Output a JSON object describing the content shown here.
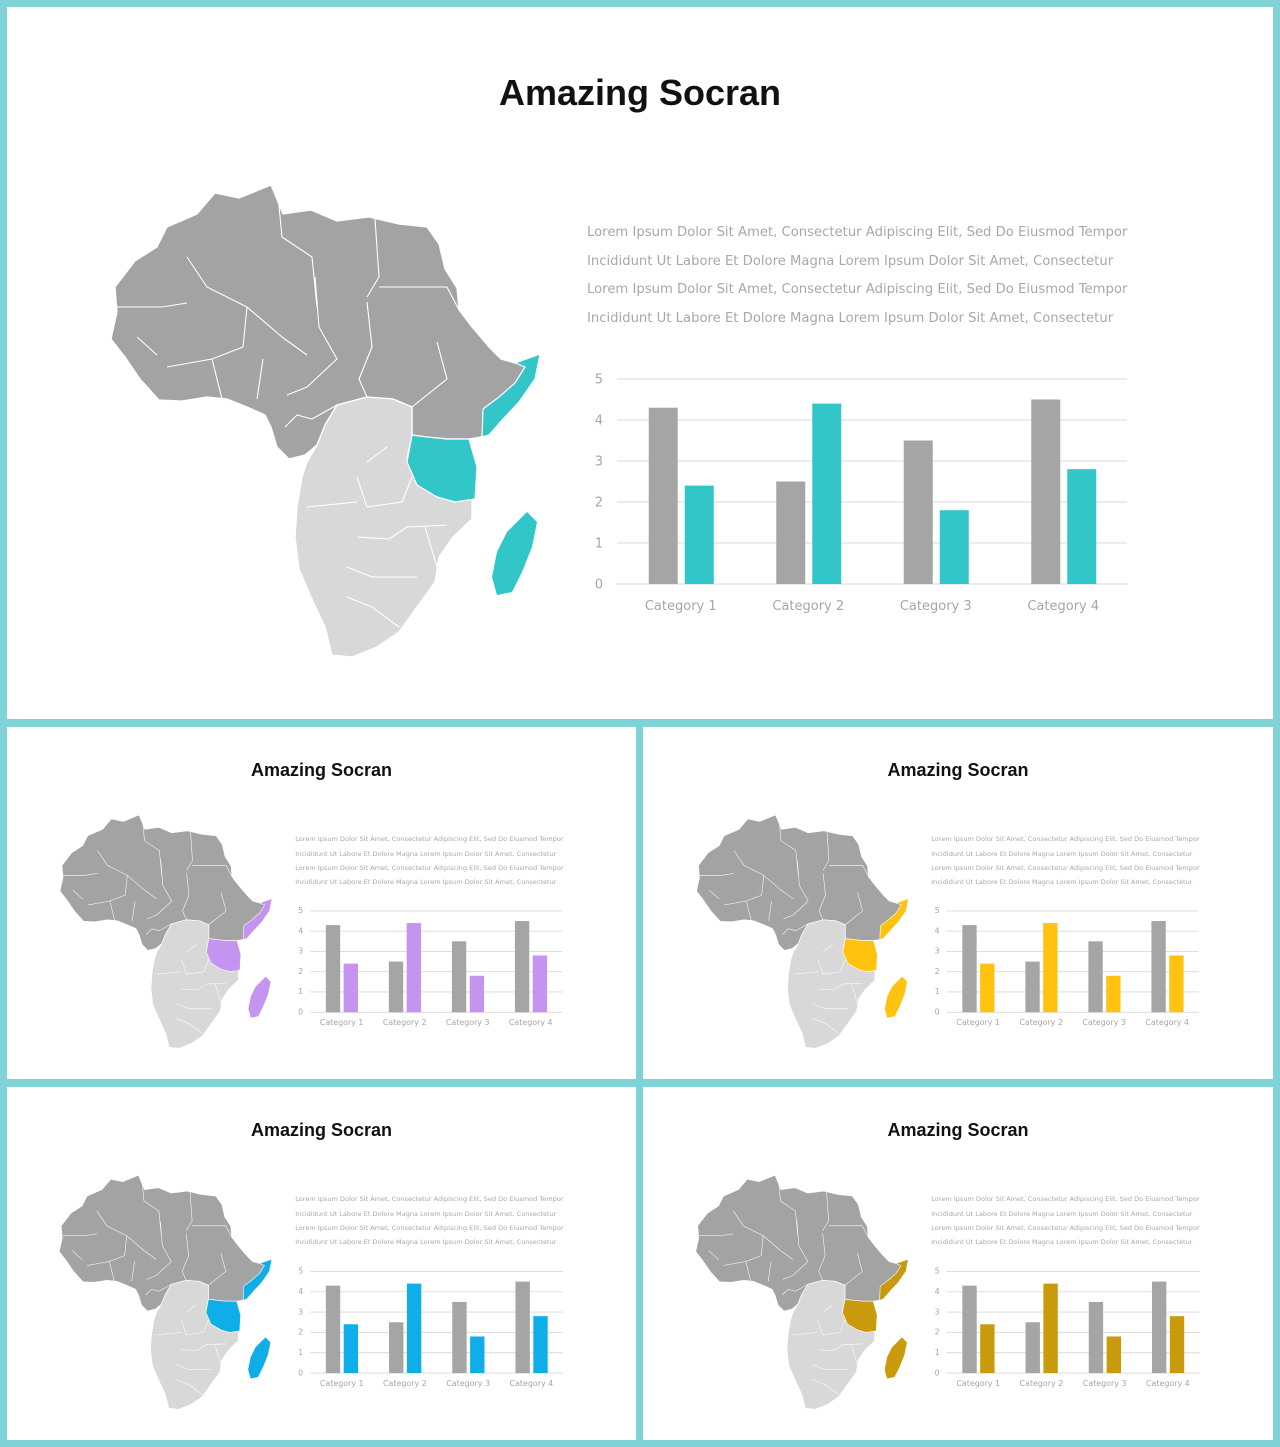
{
  "slides": [
    {
      "title": "Amazing Socran",
      "accent": "#33c6c9"
    },
    {
      "title": "Amazing Socran",
      "accent": "#c593f0"
    },
    {
      "title": "Amazing Socran",
      "accent": "#ffc20e"
    },
    {
      "title": "Amazing Socran",
      "accent": "#10aee8"
    },
    {
      "title": "Amazing Socran",
      "accent": "#c99a0c"
    }
  ],
  "body_lines": [
    "Lorem Ipsum Dolor Sit Amet, Consectetur Adipiscing Elit, Sed Do Eiusmod Tempor",
    "Incididunt Ut Labore Et Dolore Magna Lorem Ipsum Dolor Sit Amet, Consectetur",
    "Lorem Ipsum Dolor Sit Amet, Consectetur Adipiscing Elit, Sed Do Eiusmod Tempor",
    "Incididunt Ut Labore Et Dolore Magna Lorem Ipsum Dolor Sit Amet, Consectetur"
  ],
  "colors": {
    "frame": "#7fd3d6",
    "map_north": "#a3a3a3",
    "map_south": "#d8d8d8",
    "bar_gray": "#a5a5a5",
    "grid": "#d9d9d9",
    "axis_text": "#a6a6a6"
  },
  "chart_data": {
    "type": "bar",
    "categories": [
      "Category 1",
      "Category 2",
      "Category 3",
      "Category 4"
    ],
    "series": [
      {
        "values": [
          4.3,
          2.5,
          3.5,
          4.5
        ]
      },
      {
        "values": [
          2.4,
          4.4,
          1.8,
          2.8
        ]
      }
    ],
    "yticks": [
      0,
      1,
      2,
      3,
      4,
      5
    ],
    "ylim": [
      0,
      5
    ],
    "grid": true
  }
}
